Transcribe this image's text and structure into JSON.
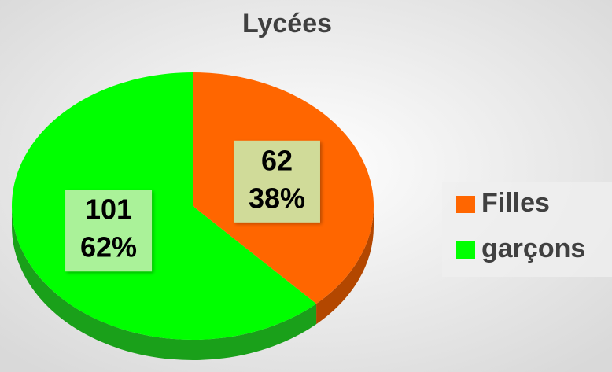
{
  "chart_data": {
    "type": "pie",
    "title": "Lycées",
    "categories": [
      "Filles",
      "garçons"
    ],
    "values": [
      62,
      101
    ],
    "percentages": [
      38,
      62
    ],
    "percentage_labels": [
      "38%",
      "62%"
    ],
    "colors": [
      "#ff6600",
      "#00ff00"
    ],
    "side_colors": [
      "#b34700",
      "#1aa01a"
    ],
    "legend": "right"
  }
}
